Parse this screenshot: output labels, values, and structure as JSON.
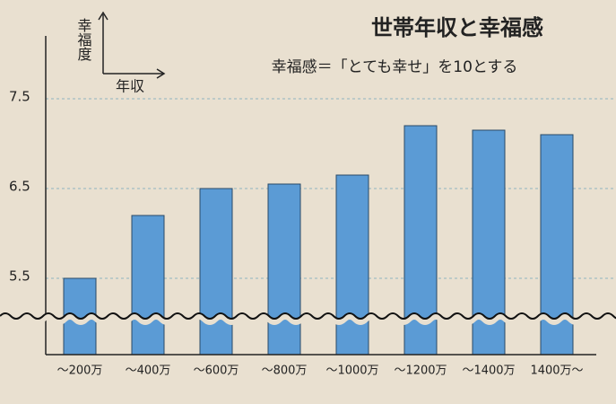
{
  "chart_data": {
    "type": "bar",
    "title": "世帯年収と幸福感",
    "subtitle": "幸福感＝「とても幸せ」を10とする",
    "y_label": "幸福度",
    "x_label": "年収",
    "categories": [
      "～200万",
      "～400万",
      "～600万",
      "～800万",
      "～1000万",
      "～1200万",
      "～1400万",
      "1400万～"
    ],
    "values": [
      5.5,
      6.2,
      6.5,
      6.55,
      6.65,
      7.2,
      7.15,
      7.1
    ],
    "color": "#5b9bd5",
    "ylim": [
      4.65,
      8.2
    ],
    "yticks": [
      5.5,
      6.5,
      7.5
    ],
    "grid": true
  }
}
